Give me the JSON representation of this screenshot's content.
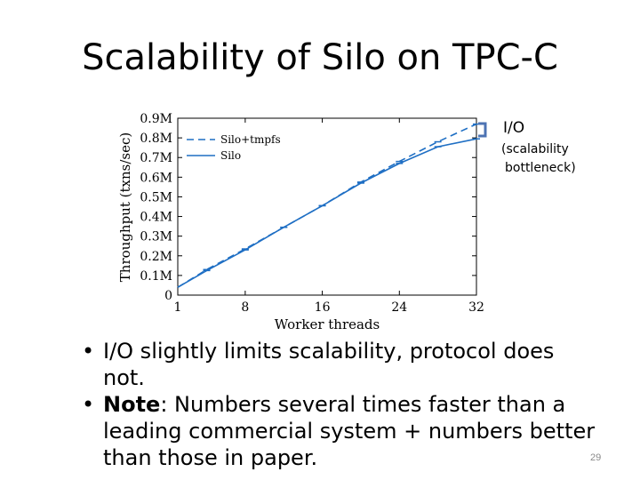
{
  "slide": {
    "title": "Scalability of Silo on TPC-C",
    "annotation": {
      "line1": "I/O",
      "line2": "(scalability",
      "line3": "bottleneck)"
    },
    "bullets": [
      {
        "text": "I/O slightly limits scalability, protocol does not.",
        "bold_prefix": ""
      },
      {
        "bold_prefix": "Note",
        "text": ": Numbers several times faster than a leading commercial system + numbers better than those in paper."
      }
    ],
    "bullet_lines": [
      [
        "",
        "I/O slightly limits scalability, protocol does not."
      ],
      [
        "Note",
        ": Numbers several times faster than a"
      ],
      [
        "",
        "leading commercial system + numbers better"
      ],
      [
        "",
        "than those in paper."
      ]
    ],
    "page_number": "29",
    "colors": {
      "series": "#1f6fc4",
      "annotation_bracket": "#4d73b3"
    }
  },
  "chart_data": {
    "type": "line",
    "xlabel": "Worker threads",
    "ylabel": "Throughput (txns/sec)",
    "xlim": [
      1,
      32
    ],
    "ylim": [
      0,
      900000
    ],
    "xticks": [
      1,
      8,
      16,
      24,
      32
    ],
    "yticks": [
      0,
      100000,
      200000,
      300000,
      400000,
      500000,
      600000,
      700000,
      800000,
      900000
    ],
    "ytick_labels": [
      "0",
      "0.1M",
      "0.2M",
      "0.3M",
      "0.4M",
      "0.5M",
      "0.6M",
      "0.7M",
      "0.8M",
      "0.9M"
    ],
    "legend_position": "top-left",
    "grid": false,
    "series": [
      {
        "name": "Silo+tmpfs",
        "style": "dashed",
        "x": [
          1,
          4,
          8,
          12,
          16,
          20,
          24,
          28,
          32
        ],
        "y": [
          40000,
          130000,
          235000,
          345000,
          455000,
          575000,
          680000,
          780000,
          870000
        ]
      },
      {
        "name": "Silo",
        "style": "solid",
        "x": [
          1,
          4,
          8,
          12,
          16,
          20,
          24,
          28,
          32
        ],
        "y": [
          40000,
          125000,
          230000,
          345000,
          455000,
          570000,
          670000,
          755000,
          795000
        ]
      }
    ]
  }
}
